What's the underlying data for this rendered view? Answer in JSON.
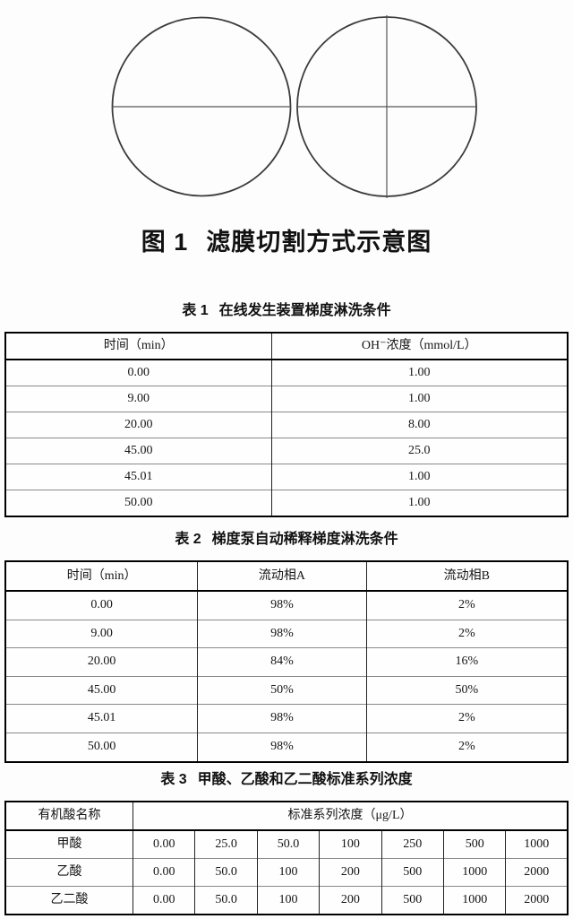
{
  "colors": {
    "page_background": "#fdfdfd",
    "text": "#151515",
    "table_outer_border": "#000000",
    "table_inner_line": "#8a8a8a",
    "circle_stroke": "#3c3c3c"
  },
  "figure": {
    "caption_label": "图 1",
    "caption_title": "滤膜切割方式示意图",
    "left_circle": "circle-cut-in-half-by-horizontal-line",
    "right_circle": "circle-cut-in-quarters-by-cross-lines"
  },
  "table1": {
    "caption_label": "表 1",
    "caption_title": "在线发生装置梯度淋洗条件",
    "headers": [
      "时间（min）",
      "OH⁻浓度（mmol/L）"
    ],
    "rows": [
      [
        "0.00",
        "1.00"
      ],
      [
        "9.00",
        "1.00"
      ],
      [
        "20.00",
        "8.00"
      ],
      [
        "45.00",
        "25.0"
      ],
      [
        "45.01",
        "1.00"
      ],
      [
        "50.00",
        "1.00"
      ]
    ]
  },
  "table2": {
    "caption_label": "表 2",
    "caption_title": "梯度泵自动稀释梯度淋洗条件",
    "headers": [
      "时间（min）",
      "流动相A",
      "流动相B"
    ],
    "rows": [
      [
        "0.00",
        "98%",
        "2%"
      ],
      [
        "9.00",
        "98%",
        "2%"
      ],
      [
        "20.00",
        "84%",
        "16%"
      ],
      [
        "45.00",
        "50%",
        "50%"
      ],
      [
        "45.01",
        "98%",
        "2%"
      ],
      [
        "50.00",
        "98%",
        "2%"
      ]
    ]
  },
  "table3": {
    "caption_label": "表 3",
    "caption_title": "甲酸、乙酸和乙二酸标准系列浓度",
    "col1_header": "有机酸名称",
    "span_header": "标准系列浓度（μg/L）",
    "rows": [
      [
        "甲酸",
        "0.00",
        "25.0",
        "50.0",
        "100",
        "250",
        "500",
        "1000"
      ],
      [
        "乙酸",
        "0.00",
        "50.0",
        "100",
        "200",
        "500",
        "1000",
        "2000"
      ],
      [
        "乙二酸",
        "0.00",
        "50.0",
        "100",
        "200",
        "500",
        "1000",
        "2000"
      ]
    ]
  }
}
